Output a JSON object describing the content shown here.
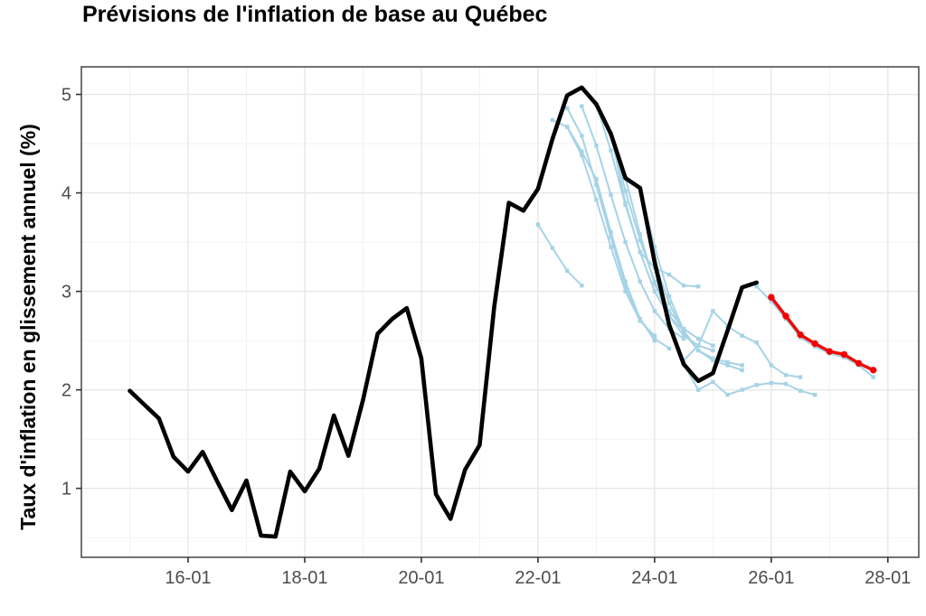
{
  "header": {
    "title": "Prévisions de l'inflation de base au Québec"
  },
  "colors": {
    "historical": "#000000",
    "past_forecast": "#a6d3e6",
    "current_forecast": "#f50000",
    "grid_major": "#e7e7e7",
    "grid_minor": "#f2f2f2",
    "panel_border": "#4f4f4f",
    "tick_mark": "#333333",
    "axis_text": "#4d4d4d",
    "background": "#ffffff"
  },
  "chart_data": {
    "type": "line",
    "title": "Prévisions de l'inflation de base au Québec",
    "xlabel": "",
    "ylabel": "Taux d'inflation en glissement annuel (%)",
    "legend": "none",
    "grid": true,
    "x_axis": {
      "range": [
        2014.17,
        2028.53
      ],
      "tick_values": [
        2016,
        2018,
        2020,
        2022,
        2024,
        2026,
        2028
      ],
      "tick_labels": [
        "16-01",
        "18-01",
        "20-01",
        "22-01",
        "24-01",
        "26-01",
        "28-01"
      ],
      "minor_gridlines": [
        2015,
        2017,
        2019,
        2021,
        2023,
        2025,
        2027
      ]
    },
    "y_axis": {
      "range": [
        0.3,
        5.28
      ],
      "tick_values": [
        1,
        2,
        3,
        4,
        5
      ],
      "tick_labels": [
        "1",
        "2",
        "3",
        "4",
        "5"
      ],
      "minor_gridlines": [
        0.5,
        1.5,
        2.5,
        3.5,
        4.5
      ]
    },
    "step_years": 0.25,
    "series": [
      {
        "name": "observed-core-inflation",
        "role": "historical",
        "color": "#000000",
        "width": 4.6,
        "marker": "none",
        "start": 2015.0,
        "values": [
          1.99,
          1.85,
          1.71,
          1.32,
          1.17,
          1.37,
          1.07,
          0.78,
          1.08,
          0.52,
          0.51,
          1.17,
          0.97,
          1.2,
          1.74,
          1.33,
          1.9,
          2.57,
          2.72,
          2.83,
          2.32,
          0.94,
          0.69,
          1.19,
          1.44,
          2.85,
          3.9,
          3.82,
          4.04,
          4.55,
          4.99,
          5.07,
          4.9,
          4.6,
          4.15,
          4.05,
          3.3,
          2.66,
          2.26,
          2.09,
          2.17,
          2.6,
          3.04,
          3.09
        ]
      },
      {
        "name": "forecast-2022q1",
        "role": "past_forecast",
        "color": "#a6d3e6",
        "width": 2,
        "marker": "square",
        "start": 2022.0,
        "values": [
          3.68,
          3.44,
          3.21,
          3.06
        ]
      },
      {
        "name": "forecast-2022q2",
        "role": "past_forecast",
        "color": "#a6d3e6",
        "width": 2,
        "marker": "square",
        "start": 2022.25,
        "values": [
          4.74,
          4.67,
          4.42,
          4.14,
          3.6,
          3.1,
          2.72,
          2.5
        ]
      },
      {
        "name": "forecast-2022q3a",
        "role": "past_forecast",
        "color": "#a6d3e6",
        "width": 2,
        "marker": "square",
        "start": 2022.5,
        "values": [
          4.86,
          4.58,
          4.08,
          3.55,
          3.05,
          2.72,
          2.52,
          2.42
        ]
      },
      {
        "name": "forecast-2022q3b",
        "role": "past_forecast",
        "color": "#a6d3e6",
        "width": 2,
        "marker": "square",
        "start": 2022.5,
        "values": [
          4.67,
          4.38,
          3.93,
          3.45,
          3.0,
          2.7,
          2.55
        ]
      },
      {
        "name": "forecast-2022q4",
        "role": "past_forecast",
        "color": "#a6d3e6",
        "width": 2,
        "marker": "square",
        "start": 2022.75,
        "values": [
          4.88,
          4.48,
          3.98,
          3.5,
          3.1,
          2.8,
          2.62,
          2.52
        ]
      },
      {
        "name": "forecast-2023q1",
        "role": "past_forecast",
        "color": "#a6d3e6",
        "width": 2,
        "marker": "square",
        "start": 2023.0,
        "values": [
          4.9,
          4.43,
          3.88,
          3.4,
          3.0,
          2.75,
          2.6
        ]
      },
      {
        "name": "forecast-2023q2",
        "role": "past_forecast",
        "color": "#a6d3e6",
        "width": 2,
        "marker": "square",
        "start": 2023.25,
        "values": [
          4.6,
          4.02,
          3.52,
          3.1,
          2.8,
          2.62,
          2.52,
          2.45
        ]
      },
      {
        "name": "forecast-2023q2-high",
        "role": "past_forecast",
        "color": "#a6d3e6",
        "width": 2,
        "marker": "square",
        "start": 2023.25,
        "values": [
          4.6,
          3.9,
          3.4,
          3.24,
          3.17,
          3.06,
          3.05
        ]
      },
      {
        "name": "forecast-2023q3",
        "role": "past_forecast",
        "color": "#a6d3e6",
        "width": 2,
        "marker": "square",
        "start": 2023.5,
        "values": [
          4.15,
          3.58,
          3.08,
          2.75,
          2.55,
          2.45,
          2.4
        ]
      },
      {
        "name": "forecast-2023q4",
        "role": "past_forecast",
        "color": "#a6d3e6",
        "width": 2,
        "marker": "square",
        "start": 2023.75,
        "values": [
          4.05,
          3.45,
          2.95,
          2.6,
          2.4,
          2.3,
          2.25,
          2.2
        ]
      },
      {
        "name": "forecast-2024q1",
        "role": "past_forecast",
        "color": "#a6d3e6",
        "width": 2,
        "marker": "square",
        "start": 2024.0,
        "values": [
          3.3,
          2.88,
          2.58,
          2.4,
          2.32,
          2.28,
          2.25
        ]
      },
      {
        "name": "forecast-2024q3-low",
        "role": "past_forecast",
        "color": "#a6d3e6",
        "width": 2,
        "marker": "square",
        "start": 2024.5,
        "values": [
          2.26,
          2.0,
          2.08,
          1.95,
          2.0,
          2.05,
          2.07,
          2.06,
          1.99,
          1.95
        ]
      },
      {
        "name": "forecast-2024q3-mid",
        "role": "past_forecast",
        "color": "#a6d3e6",
        "width": 2,
        "marker": "square",
        "start": 2024.5,
        "values": [
          2.3,
          2.45,
          2.8,
          2.65,
          2.55,
          2.48,
          2.25,
          2.15,
          2.13
        ]
      },
      {
        "name": "forecast-2025q4",
        "role": "past_forecast",
        "color": "#a6d3e6",
        "width": 2,
        "marker": "square",
        "start": 2025.75,
        "values": [
          3.05,
          2.9,
          2.72,
          2.53,
          2.44,
          2.37,
          2.33,
          2.25,
          2.13
        ]
      },
      {
        "name": "forecast-current",
        "role": "current_forecast",
        "color": "#f50000",
        "width": 3.4,
        "marker": "circle",
        "start": 2026.0,
        "values": [
          2.94,
          2.75,
          2.56,
          2.47,
          2.39,
          2.36,
          2.27,
          2.2
        ]
      }
    ]
  }
}
